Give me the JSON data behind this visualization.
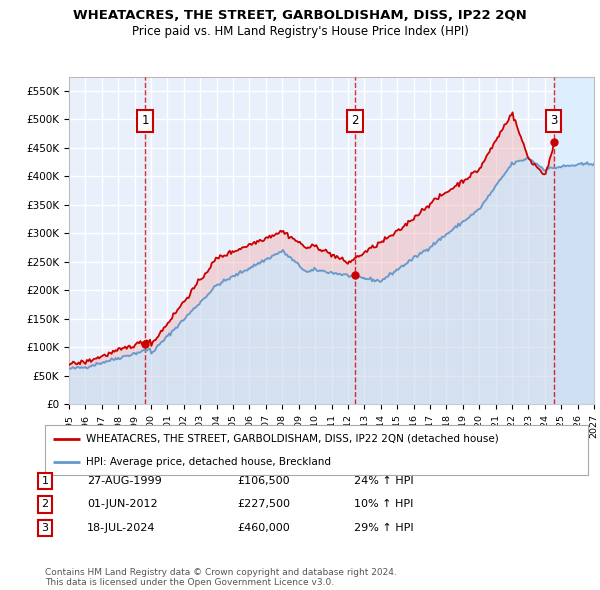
{
  "title": "WHEATACRES, THE STREET, GARBOLDISHAM, DISS, IP22 2QN",
  "subtitle": "Price paid vs. HM Land Registry's House Price Index (HPI)",
  "ylim": [
    0,
    575000
  ],
  "yticks": [
    0,
    50000,
    100000,
    150000,
    200000,
    250000,
    300000,
    350000,
    400000,
    450000,
    500000,
    550000
  ],
  "ytick_labels": [
    "£0",
    "£50K",
    "£100K",
    "£150K",
    "£200K",
    "£250K",
    "£300K",
    "£350K",
    "£400K",
    "£450K",
    "£500K",
    "£550K"
  ],
  "background_color": "#ffffff",
  "plot_bg_color": "#eaf0fb",
  "grid_color": "#ffffff",
  "sale_color": "#cc0000",
  "hpi_color": "#6699cc",
  "hpi_fill_color": "#c5d5e8",
  "sale_fill_color": "#f5c5c5",
  "sale_dates": [
    1999.65,
    2012.42,
    2024.54
  ],
  "sale_prices": [
    106500,
    227500,
    460000
  ],
  "sale_labels": [
    "1",
    "2",
    "3"
  ],
  "annotations": [
    {
      "label": "1",
      "date": "27-AUG-1999",
      "price": "£106,500",
      "pct": "24% ↑ HPI"
    },
    {
      "label": "2",
      "date": "01-JUN-2012",
      "price": "£227,500",
      "pct": "10% ↑ HPI"
    },
    {
      "label": "3",
      "date": "18-JUL-2024",
      "price": "£460,000",
      "pct": "29% ↑ HPI"
    }
  ],
  "legend_line1": "WHEATACRES, THE STREET, GARBOLDISHAM, DISS, IP22 2QN (detached house)",
  "legend_line2": "HPI: Average price, detached house, Breckland",
  "footnote": "Contains HM Land Registry data © Crown copyright and database right 2024.\nThis data is licensed under the Open Government Licence v3.0.",
  "future_hatch_start": 2024.54,
  "xmin": 1995.0,
  "xmax": 2027.0
}
